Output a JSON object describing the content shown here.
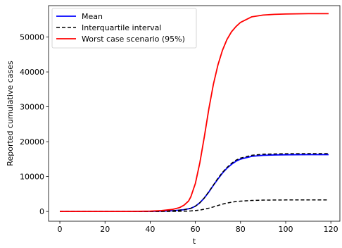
{
  "chart_data": {
    "type": "line",
    "title": "",
    "xlabel": "t",
    "ylabel": "Reported cumulative cases",
    "xlim": [
      -5,
      124
    ],
    "ylim": [
      -2800,
      59000
    ],
    "xticks": [
      0,
      20,
      40,
      60,
      80,
      100,
      120
    ],
    "yticks": [
      0,
      10000,
      20000,
      30000,
      40000,
      50000
    ],
    "grid": false,
    "legend_position": "top-left",
    "series": [
      {
        "name": "Mean",
        "color": "#0000ff",
        "style": "solid",
        "x": [
          0,
          10,
          20,
          30,
          40,
          45,
          50,
          55,
          58,
          60,
          62,
          64,
          66,
          68,
          70,
          72,
          74,
          76,
          78,
          80,
          85,
          90,
          95,
          100,
          105,
          110,
          115,
          119
        ],
        "y": [
          0,
          0,
          0,
          0,
          30,
          80,
          200,
          500,
          900,
          1500,
          2500,
          3900,
          5600,
          7500,
          9300,
          11000,
          12400,
          13500,
          14400,
          15000,
          15800,
          16100,
          16200,
          16250,
          16270,
          16280,
          16290,
          16290
        ]
      },
      {
        "name": "Interquartile interval",
        "color": "#000000",
        "style": "dashed",
        "x": [
          0,
          10,
          20,
          30,
          40,
          45,
          50,
          55,
          58,
          60,
          62,
          64,
          66,
          68,
          70,
          72,
          74,
          76,
          78,
          80,
          85,
          90,
          95,
          100,
          105,
          110,
          115,
          119
        ],
        "y": [
          0,
          0,
          0,
          0,
          30,
          80,
          200,
          500,
          900,
          1500,
          2500,
          3900,
          5700,
          7600,
          9500,
          11200,
          12600,
          13800,
          14700,
          15300,
          16100,
          16400,
          16500,
          16550,
          16570,
          16580,
          16590,
          16590
        ]
      },
      {
        "name": "",
        "color": "#000000",
        "style": "dashed",
        "x": [
          0,
          10,
          20,
          30,
          40,
          45,
          50,
          55,
          58,
          60,
          62,
          64,
          66,
          68,
          70,
          72,
          74,
          76,
          78,
          80,
          85,
          90,
          95,
          100,
          105,
          110,
          115,
          119
        ],
        "y": [
          0,
          0,
          0,
          0,
          0,
          10,
          30,
          80,
          150,
          250,
          400,
          650,
          950,
          1300,
          1700,
          2100,
          2400,
          2650,
          2850,
          2950,
          3150,
          3250,
          3280,
          3300,
          3310,
          3320,
          3320,
          3320
        ]
      },
      {
        "name": "Worst case scenario (95%)",
        "color": "#ff0000",
        "style": "solid",
        "x": [
          0,
          10,
          20,
          30,
          40,
          45,
          50,
          53,
          55,
          57,
          58,
          60,
          62,
          64,
          66,
          68,
          70,
          72,
          74,
          76,
          78,
          80,
          85,
          90,
          95,
          100,
          105,
          110,
          115,
          119
        ],
        "y": [
          0,
          0,
          0,
          0,
          100,
          250,
          600,
          1100,
          1800,
          3000,
          4200,
          8000,
          14000,
          21500,
          29500,
          36500,
          42000,
          46200,
          49300,
          51500,
          53000,
          54200,
          55800,
          56300,
          56500,
          56600,
          56650,
          56700,
          56700,
          56700
        ]
      }
    ]
  }
}
